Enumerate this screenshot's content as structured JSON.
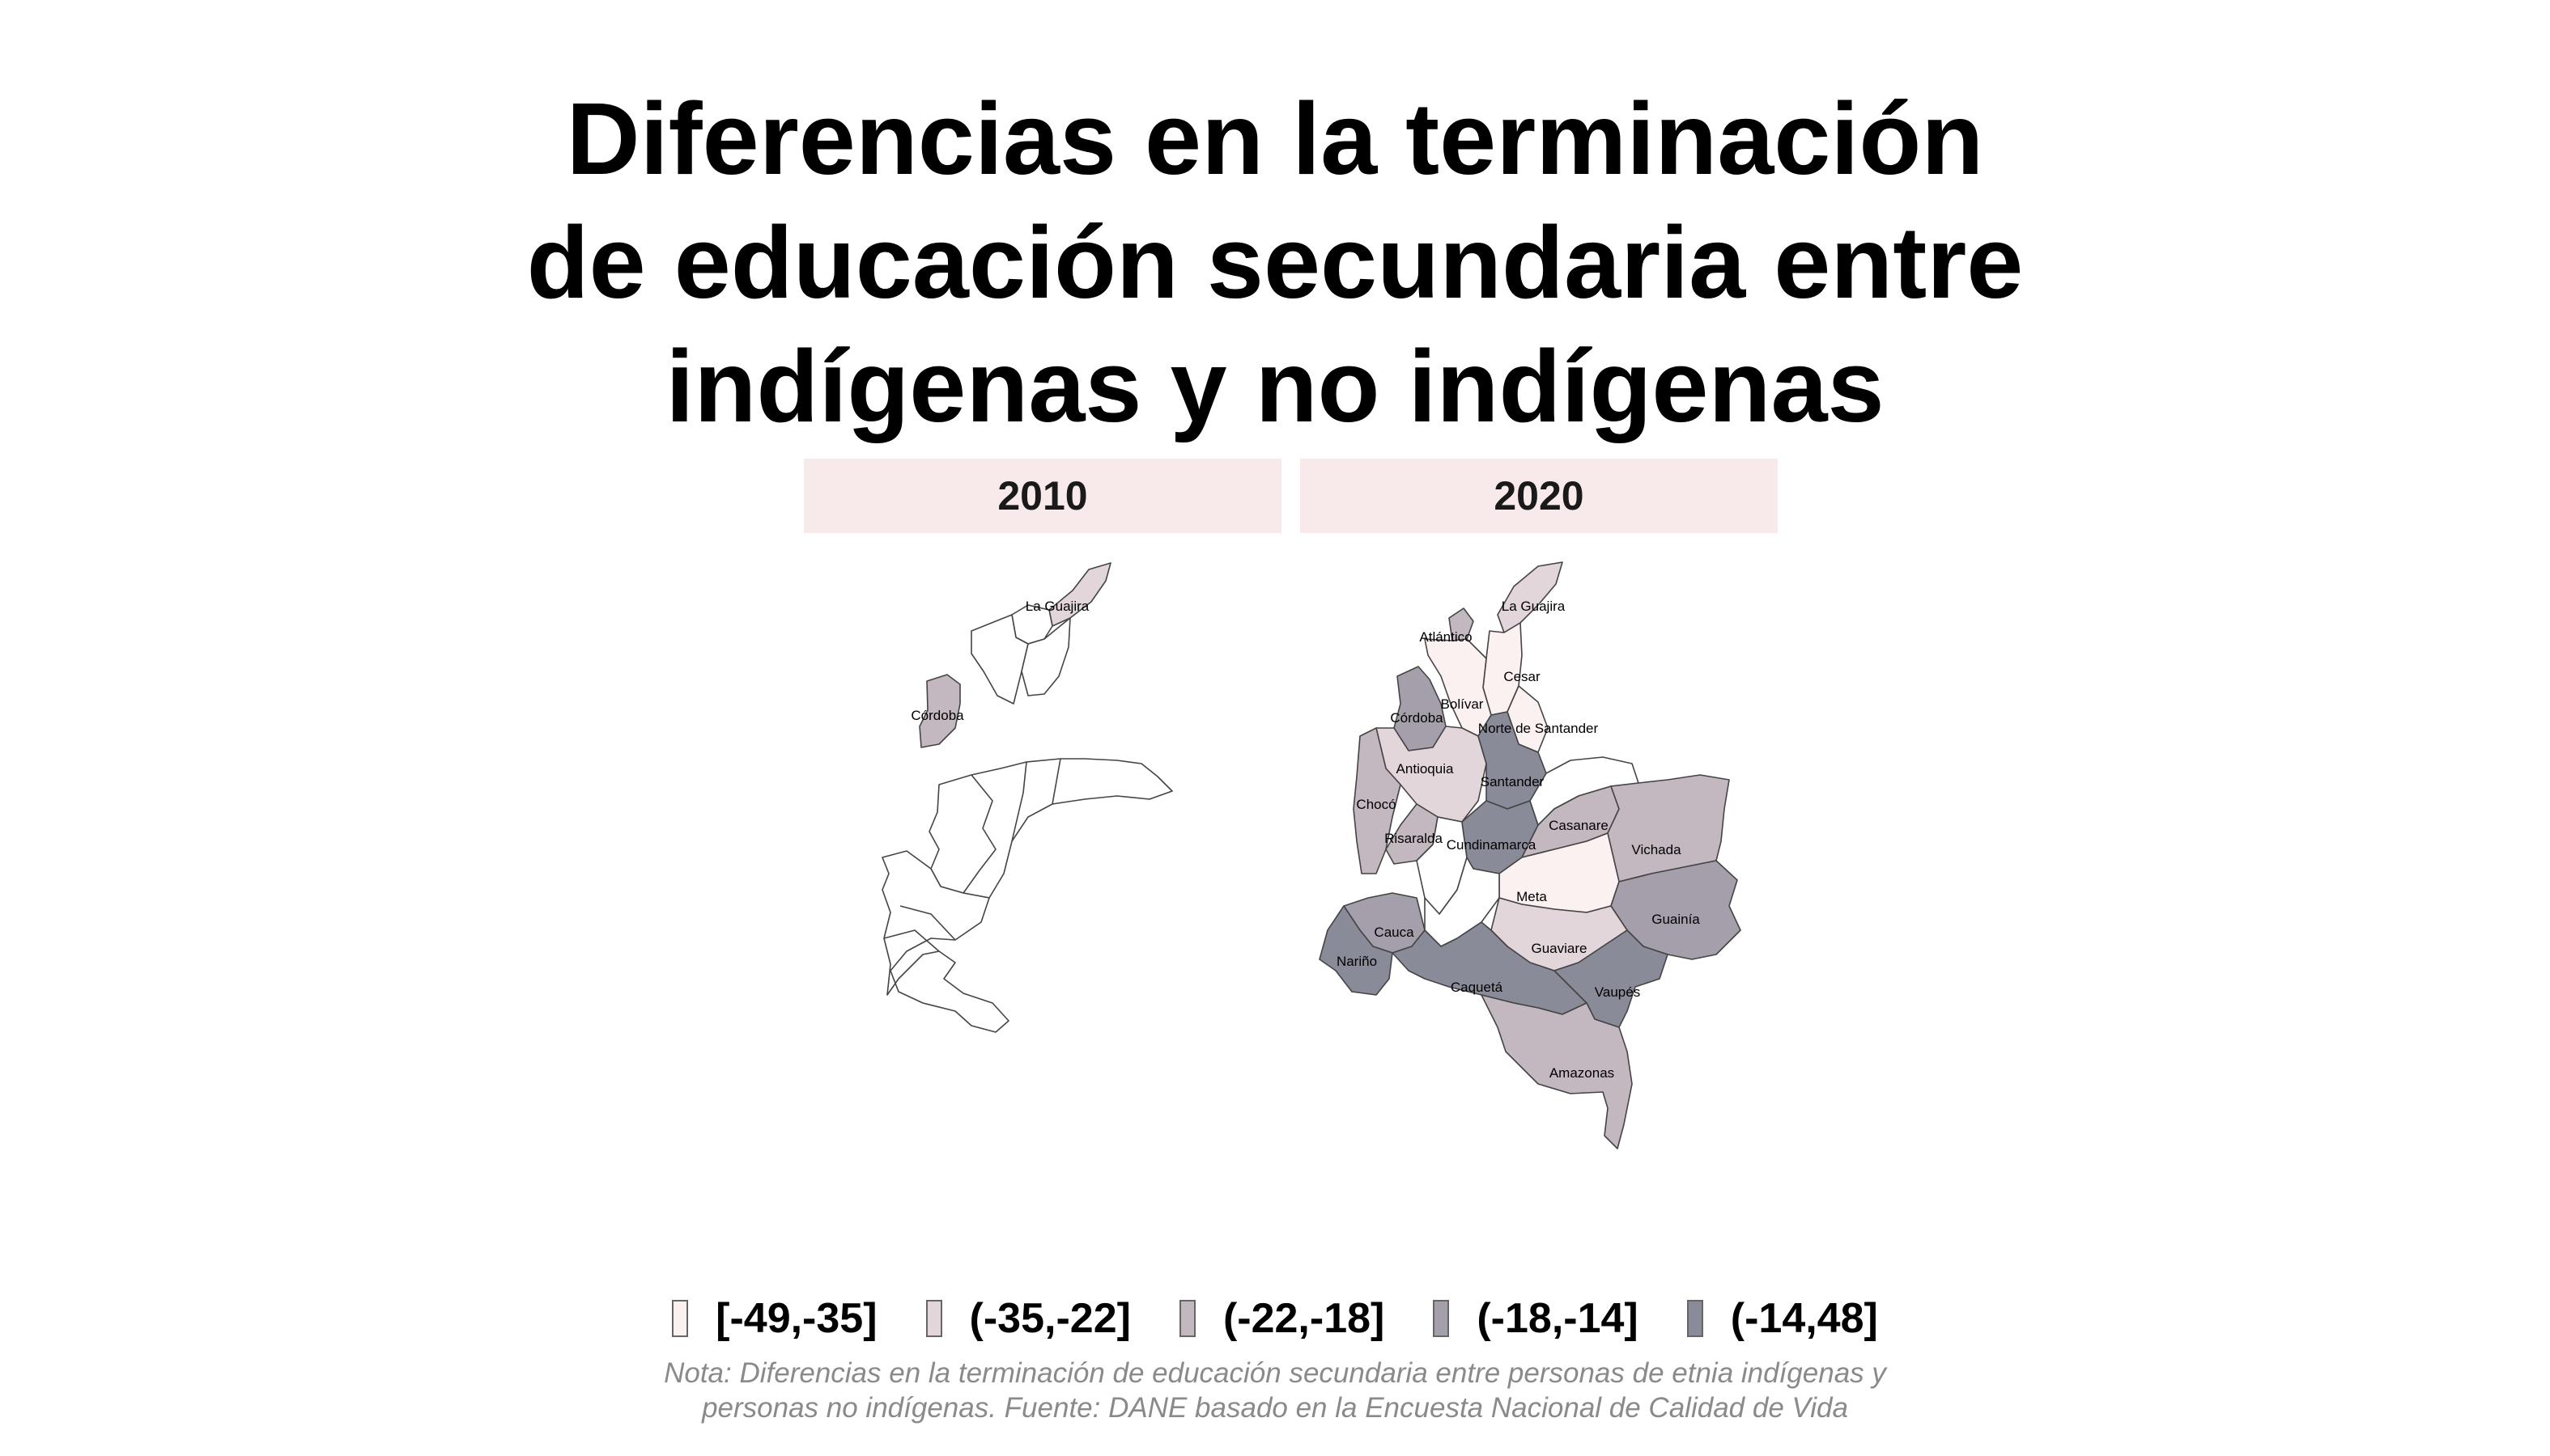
{
  "title_lines": [
    "Diferencias en la terminación",
    "de educación secundaria entre",
    "indígenas y no indígenas"
  ],
  "panels": [
    {
      "year": "2010"
    },
    {
      "year": "2020"
    }
  ],
  "legend": [
    {
      "label": "[-49,-35]",
      "color": "#fbf1f1"
    },
    {
      "label": "(-35,-22]",
      "color": "#e3d6da"
    },
    {
      "label": "(-22,-18]",
      "color": "#c4b8c0"
    },
    {
      "label": "(-18,-14]",
      "color": "#a59fab"
    },
    {
      "label": "(-14,48]",
      "color": "#8a8b99"
    }
  ],
  "map_2010": {
    "departments": [
      {
        "name": "La Guajira",
        "class": "(-35,-22]"
      },
      {
        "name": "Córdoba",
        "class": "(-22,-18]"
      }
    ]
  },
  "map_2020": {
    "departments": [
      {
        "name": "La Guajira",
        "class": "(-35,-22]"
      },
      {
        "name": "Atlántico",
        "class": "(-22,-18]"
      },
      {
        "name": "Cesar",
        "class": "[-49,-35]"
      },
      {
        "name": "Bolívar",
        "class": "[-49,-35]"
      },
      {
        "name": "Córdoba",
        "class": "(-18,-14]"
      },
      {
        "name": "Norte de Santander",
        "class": "[-49,-35]"
      },
      {
        "name": "Antioquia",
        "class": "(-35,-22]"
      },
      {
        "name": "Santander",
        "class": "(-14,48]"
      },
      {
        "name": "Chocó",
        "class": "(-22,-18]"
      },
      {
        "name": "Casanare",
        "class": "(-22,-18]"
      },
      {
        "name": "Risaralda",
        "class": "(-22,-18]"
      },
      {
        "name": "Cundinamarca",
        "class": "(-14,48]"
      },
      {
        "name": "Vichada",
        "class": "(-22,-18]"
      },
      {
        "name": "Meta",
        "class": "[-49,-35]"
      },
      {
        "name": "Guainía",
        "class": "(-18,-14]"
      },
      {
        "name": "Cauca",
        "class": "(-18,-14]"
      },
      {
        "name": "Guaviare",
        "class": "(-35,-22]"
      },
      {
        "name": "Nariño",
        "class": "(-14,48]"
      },
      {
        "name": "Caquetá",
        "class": "(-14,48]"
      },
      {
        "name": "Vaupés",
        "class": "(-14,48]"
      },
      {
        "name": "Amazonas",
        "class": "(-22,-18]"
      }
    ]
  },
  "note_lines": [
    "Nota: Diferencias en la terminación de educación secundaria entre personas de etnia indígenas y",
    "personas no indígenas. Fuente: DANE basado en la Encuesta Nacional de Calidad de Vida"
  ]
}
